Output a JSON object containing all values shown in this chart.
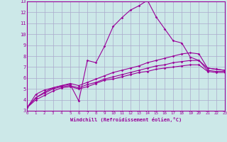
{
  "xlabel": "Windchill (Refroidissement éolien,°C)",
  "background_color": "#cce8e8",
  "grid_color": "#aaaacc",
  "line_color": "#990099",
  "xlim": [
    0,
    23
  ],
  "ylim": [
    3,
    13
  ],
  "xticks": [
    0,
    1,
    2,
    3,
    4,
    5,
    6,
    7,
    8,
    9,
    10,
    11,
    12,
    13,
    14,
    15,
    16,
    17,
    18,
    19,
    20,
    21,
    22,
    23
  ],
  "yticks": [
    3,
    4,
    5,
    6,
    7,
    8,
    9,
    10,
    11,
    12,
    13
  ],
  "series": [
    {
      "x": [
        0,
        1,
        2,
        3,
        4,
        5,
        6,
        7,
        8,
        9,
        10,
        11,
        12,
        13,
        14,
        15,
        16,
        17,
        18,
        19,
        20,
        21,
        22,
        23
      ],
      "y": [
        3.3,
        4.2,
        4.7,
        5.1,
        5.3,
        5.4,
        3.9,
        7.6,
        7.4,
        8.9,
        10.7,
        11.5,
        12.2,
        12.6,
        13.1,
        11.6,
        10.5,
        9.4,
        9.2,
        7.9,
        7.6,
        6.9,
        6.8,
        6.7
      ]
    },
    {
      "x": [
        0,
        1,
        2,
        3,
        4,
        5,
        6,
        7,
        8,
        9,
        10,
        11,
        12,
        13,
        14,
        15,
        16,
        17,
        18,
        19,
        20,
        21,
        22,
        23
      ],
      "y": [
        3.3,
        4.5,
        4.9,
        5.1,
        5.3,
        5.5,
        5.3,
        5.6,
        5.9,
        6.2,
        6.5,
        6.7,
        6.9,
        7.1,
        7.4,
        7.6,
        7.8,
        8.0,
        8.2,
        8.3,
        8.2,
        6.9,
        6.8,
        6.7
      ]
    },
    {
      "x": [
        0,
        1,
        2,
        3,
        4,
        5,
        6,
        7,
        8,
        9,
        10,
        11,
        12,
        13,
        14,
        15,
        16,
        17,
        18,
        19,
        20,
        21,
        22,
        23
      ],
      "y": [
        3.3,
        4.2,
        4.6,
        5.0,
        5.2,
        5.3,
        5.1,
        5.4,
        5.6,
        5.9,
        6.1,
        6.3,
        6.5,
        6.7,
        6.9,
        7.1,
        7.2,
        7.4,
        7.5,
        7.6,
        7.6,
        6.7,
        6.6,
        6.6
      ]
    },
    {
      "x": [
        0,
        1,
        2,
        3,
        4,
        5,
        6,
        7,
        8,
        9,
        10,
        11,
        12,
        13,
        14,
        15,
        16,
        17,
        18,
        19,
        20,
        21,
        22,
        23
      ],
      "y": [
        3.3,
        4.0,
        4.4,
        4.8,
        5.1,
        5.2,
        5.0,
        5.2,
        5.5,
        5.8,
        5.9,
        6.1,
        6.3,
        6.5,
        6.6,
        6.8,
        6.9,
        7.0,
        7.1,
        7.2,
        7.2,
        6.6,
        6.5,
        6.5
      ]
    }
  ]
}
